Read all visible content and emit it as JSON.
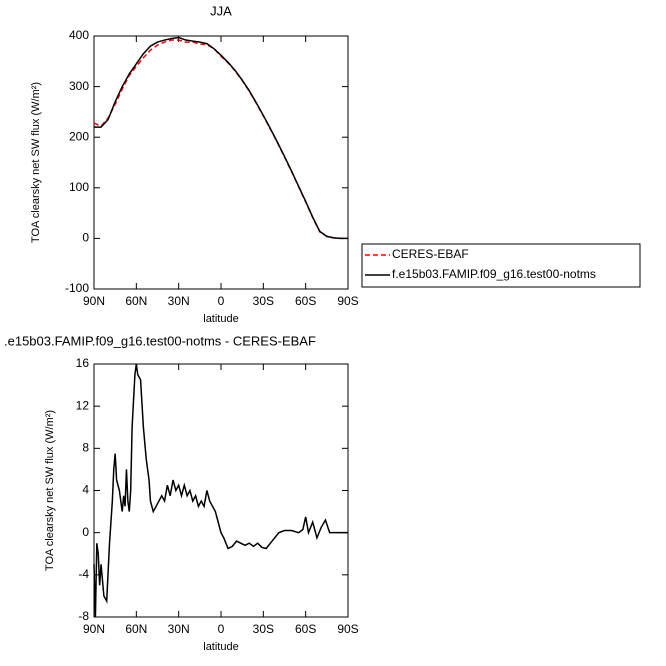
{
  "chart_data": [
    {
      "type": "line",
      "title": "JJA",
      "x_label": "latitude",
      "y_label": "TOA clearsky net SW flux (W/m²)",
      "x": [
        90,
        85,
        80,
        75,
        70,
        65,
        60,
        55,
        50,
        45,
        40,
        35,
        30,
        25,
        20,
        15,
        10,
        5,
        0,
        -5,
        -10,
        -15,
        -20,
        -25,
        -30,
        -35,
        -40,
        -45,
        -50,
        -55,
        -60,
        -65,
        -70,
        -75,
        -80,
        -85,
        -90
      ],
      "xlim": [
        90,
        -90
      ],
      "xticks": [
        {
          "value": 90,
          "label": "90N"
        },
        {
          "value": 60,
          "label": "60N"
        },
        {
          "value": 30,
          "label": "30N"
        },
        {
          "value": 0,
          "label": "0"
        },
        {
          "value": -30,
          "label": "30S"
        },
        {
          "value": -60,
          "label": "60S"
        },
        {
          "value": -90,
          "label": "90S"
        }
      ],
      "ylim": [
        -100,
        400
      ],
      "yticks": [
        -100,
        0,
        100,
        200,
        300,
        400
      ],
      "series": [
        {
          "name": "CERES-EBAF",
          "color": "#ff0000",
          "dash": true,
          "values": [
            228,
            222,
            238,
            265,
            295,
            322,
            340,
            357,
            372,
            382,
            388,
            392,
            392,
            388,
            388,
            384,
            383,
            375,
            360,
            347,
            331,
            312,
            291,
            267,
            242,
            216,
            189,
            161,
            132,
            102,
            72,
            41,
            13,
            4,
            1,
            0,
            0
          ]
        },
        {
          "name": "f.e15b03.FAMIP.f09_g16.test00-notms",
          "color": "#000000",
          "dash": false,
          "values": [
            220,
            220,
            235,
            270,
            300,
            325,
            345,
            365,
            380,
            388,
            392,
            395,
            397,
            392,
            390,
            388,
            385,
            375,
            362,
            348,
            332,
            313,
            292,
            268,
            243,
            217,
            190,
            162,
            133,
            103,
            73,
            42,
            14,
            4,
            1,
            0,
            0
          ]
        }
      ]
    },
    {
      "type": "line",
      "title": ".e15b03.FAMIP.f09_g16.test00-notms - CERES-EBAF",
      "x_label": "latitude",
      "y_label": "TOA clearsky net SW flux (W/m²)",
      "x": [
        90,
        89,
        88,
        87,
        86,
        85,
        83,
        81,
        79,
        77,
        76,
        75,
        74,
        72,
        70,
        69,
        68,
        67,
        66,
        65,
        64,
        63,
        61,
        60,
        59,
        57,
        55,
        53,
        52,
        51,
        50,
        48,
        46,
        44,
        42,
        40,
        38,
        36,
        34,
        32,
        30,
        28,
        26,
        24,
        22,
        20,
        18,
        16,
        14,
        12,
        10,
        8,
        6,
        4,
        2,
        0,
        -2,
        -5,
        -8,
        -11,
        -14,
        -17,
        -20,
        -23,
        -26,
        -29,
        -32,
        -35,
        -38,
        -41,
        -45,
        -50,
        -55,
        -58,
        -60,
        -62,
        -65,
        -68,
        -71,
        -74,
        -77,
        -80,
        -90
      ],
      "xlim": [
        90,
        -90
      ],
      "xticks": [
        {
          "value": 90,
          "label": "90N"
        },
        {
          "value": 60,
          "label": "60N"
        },
        {
          "value": 30,
          "label": "30N"
        },
        {
          "value": 0,
          "label": "0"
        },
        {
          "value": -30,
          "label": "30S"
        },
        {
          "value": -60,
          "label": "60S"
        },
        {
          "value": -90,
          "label": "90S"
        }
      ],
      "ylim": [
        -8,
        16
      ],
      "yticks": [
        -8,
        -4,
        0,
        4,
        8,
        12,
        16
      ],
      "series": [
        {
          "color": "#000000",
          "dash": false,
          "values": [
            -3,
            -8,
            -1,
            -2,
            -5,
            -3,
            -6,
            -6.5,
            -1,
            3,
            6,
            7.5,
            5,
            4,
            2,
            3.5,
            2.5,
            6,
            3,
            2,
            4,
            10,
            15,
            16,
            15,
            14.5,
            10,
            7,
            6,
            5,
            3,
            2,
            2.5,
            3,
            3.5,
            3,
            4.5,
            3.5,
            5,
            4,
            4.5,
            3.5,
            4.5,
            3.5,
            4,
            3,
            3.5,
            2.5,
            3,
            2.5,
            4,
            3,
            2.5,
            2,
            1,
            0,
            -0.5,
            -1.5,
            -1.3,
            -0.8,
            -1,
            -1.2,
            -1,
            -1.3,
            -1,
            -1.4,
            -1.5,
            -1,
            -0.5,
            0,
            0.2,
            0.2,
            0,
            0.3,
            1.5,
            0,
            1,
            -0.5,
            0.5,
            1.2,
            0,
            0,
            0
          ]
        }
      ]
    }
  ]
}
